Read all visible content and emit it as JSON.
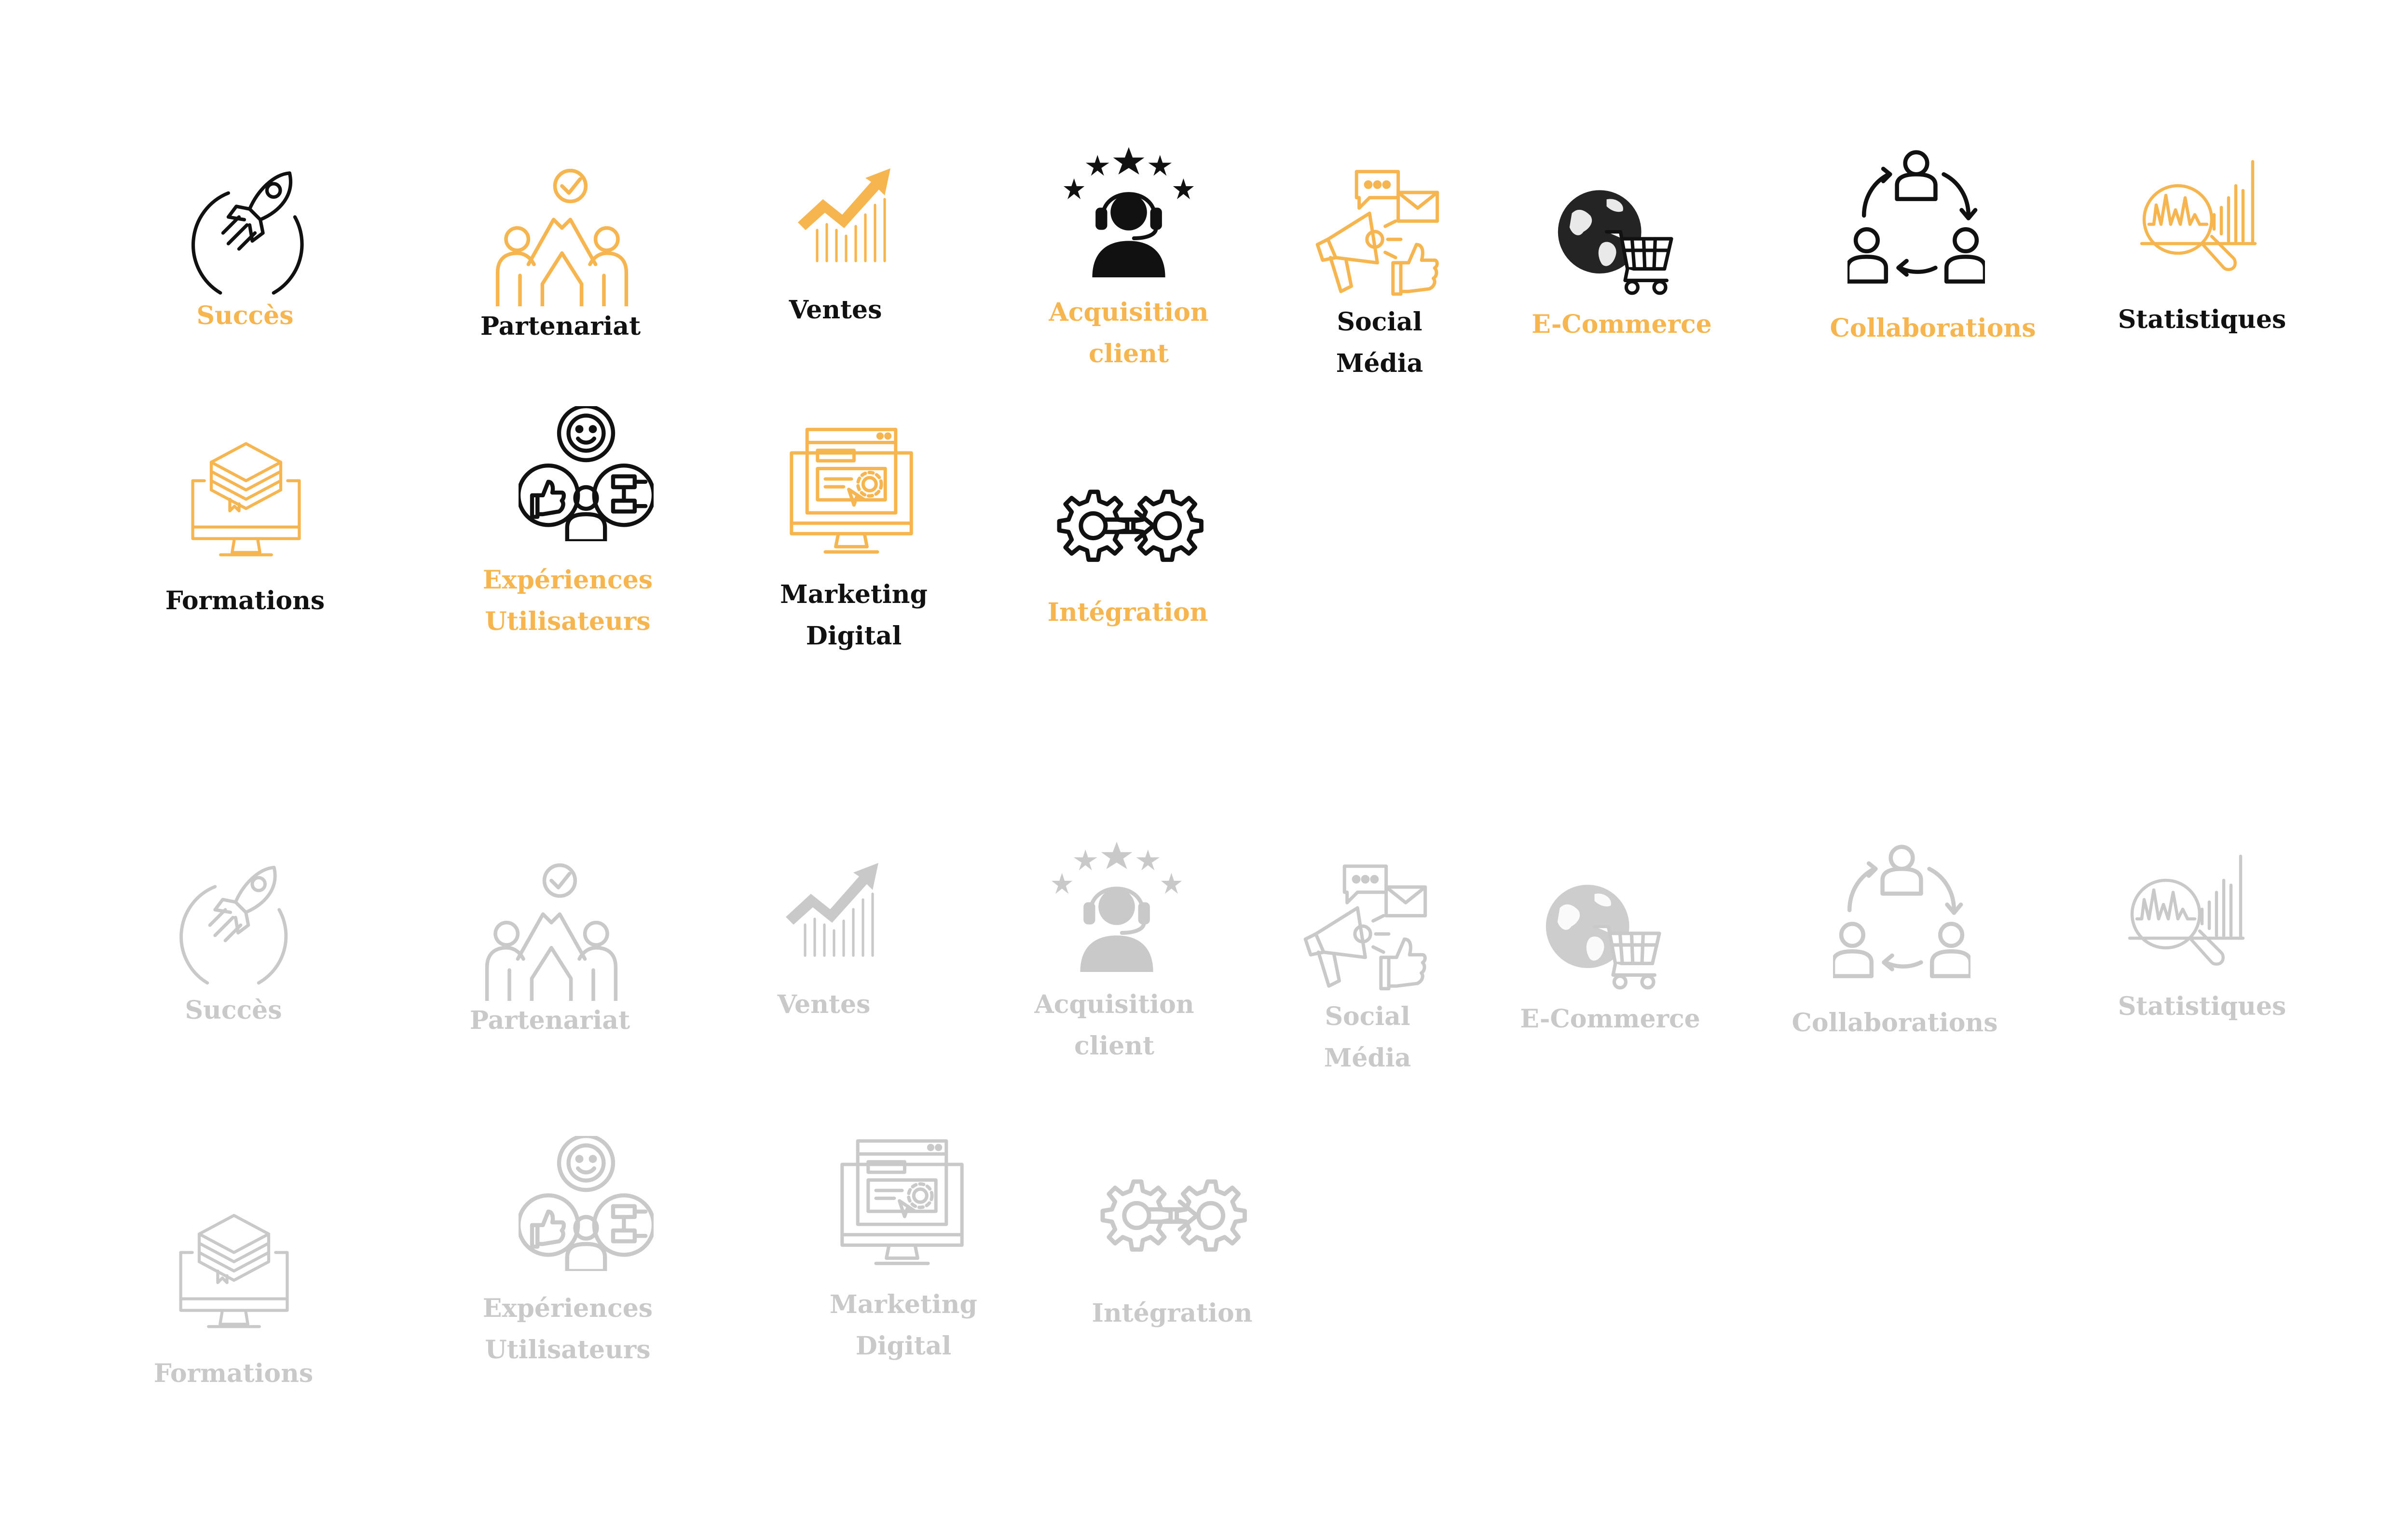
{
  "colors": {
    "black": "#111111",
    "orange": "#F6B54F",
    "grey": "#C9C9C9"
  },
  "icons": {
    "rocket": "rocket-icon",
    "partnership": "high-five-check-icon",
    "sales": "trend-up-bars-icon",
    "acquisition": "customer-support-stars-icon",
    "social": "megaphone-chat-icon",
    "ecommerce": "globe-cart-icon",
    "collaborations": "people-cycle-icon",
    "stats": "chart-magnifier-icon",
    "formations": "monitor-books-icon",
    "ux": "user-experience-icon",
    "marketing": "monitor-web-icon",
    "integration": "gears-arrow-icon"
  },
  "colored_set": {
    "succes": {
      "line1": "Succès",
      "line2": ""
    },
    "partenariat": {
      "line1": "Partenariat",
      "line2": ""
    },
    "ventes": {
      "line1": "Ventes",
      "line2": ""
    },
    "acquisition": {
      "line1": "Acquisition",
      "line2": "client"
    },
    "social": {
      "line1": "Social",
      "line2": "Média"
    },
    "ecommerce": {
      "line1": "E-Commerce",
      "line2": ""
    },
    "collaborations": {
      "line1": "Collaborations",
      "line2": ""
    },
    "statistiques": {
      "line1": "Statistiques",
      "line2": ""
    },
    "formations": {
      "line1": "Formations",
      "line2": ""
    },
    "experiences": {
      "line1": "Expériences",
      "line2": "Utilisateurs"
    },
    "marketing": {
      "line1": "Marketing",
      "line2": "Digital"
    },
    "integration": {
      "line1": "Intégration",
      "line2": ""
    }
  },
  "grey_set": {
    "succes": {
      "line1": "Succès",
      "line2": ""
    },
    "partenariat": {
      "line1": "Partenariat",
      "line2": ""
    },
    "ventes": {
      "line1": "Ventes",
      "line2": ""
    },
    "acquisition": {
      "line1": "Acquisition",
      "line2": "client"
    },
    "social": {
      "line1": "Social",
      "line2": "Média"
    },
    "ecommerce": {
      "line1": "E-Commerce",
      "line2": ""
    },
    "collaborations": {
      "line1": "Collaborations",
      "line2": ""
    },
    "statistiques": {
      "line1": "Statistiques",
      "line2": ""
    },
    "formations": {
      "line1": "Formations",
      "line2": ""
    },
    "experiences": {
      "line1": "Expériences",
      "line2": "Utilisateurs"
    },
    "marketing": {
      "line1": "Marketing",
      "line2": "Digital"
    },
    "integration": {
      "line1": "Intégration",
      "line2": ""
    }
  }
}
